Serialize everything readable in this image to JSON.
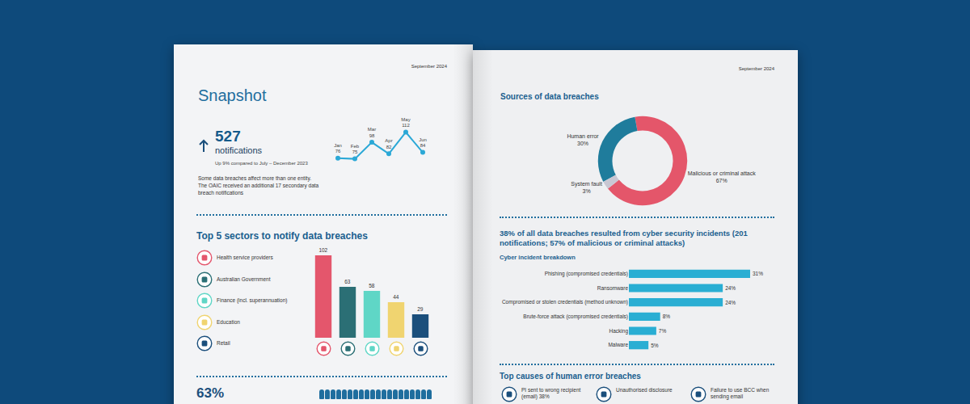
{
  "left_page": {
    "date": "September 2024",
    "title": "Snapshot",
    "headline": {
      "value": 527,
      "label": "notifications",
      "note": "Up 9% compared to July – December 2023",
      "text": "Some data breaches affect more than one entity. The OAIC received an additional 17 secondary data breach notifications"
    },
    "footer_value": "63%"
  },
  "right_page": {
    "date": "September 2024",
    "human_error_title": "Top causes of human error breaches",
    "human_error_causes": [
      {
        "label": "PI sent to wrong recipient (email)",
        "value_label": "38%"
      },
      {
        "label": "Unauthorised disclosure"
      },
      {
        "label": "Failure to use BCC when sending email"
      }
    ]
  },
  "chart_data": [
    {
      "type": "line",
      "categories": [
        "Jan",
        "Feb",
        "Mar",
        "Apr",
        "May",
        "Jun"
      ],
      "values": [
        76,
        75,
        98,
        82,
        112,
        84
      ],
      "color": "#2ba8d6",
      "marker": "circle",
      "data_labels": true,
      "tick_labels": false,
      "ylim": [
        60,
        125
      ]
    },
    {
      "type": "bar",
      "title": "Top 5 sectors to notify data breaches",
      "categories": [
        "Health service providers",
        "Australian Government",
        "Finance (incl. superannuation)",
        "Education",
        "Retail"
      ],
      "values": [
        102,
        63,
        58,
        44,
        29
      ],
      "colors": [
        "#e4566c",
        "#2b6f75",
        "#5fd6c6",
        "#f0d470",
        "#1b4f7c"
      ],
      "data_labels": true,
      "tick_labels": false,
      "ylim": [
        0,
        102
      ]
    },
    {
      "type": "pie",
      "title": "Sources of data breaches",
      "categories": [
        "Malicious or criminal attack",
        "Human error",
        "System fault"
      ],
      "values": [
        67,
        30,
        3
      ],
      "value_labels": [
        "67%",
        "30%",
        "3%"
      ],
      "colors": [
        "#e4566a",
        "#1f7c9c",
        "#c9c7d3"
      ],
      "data_labels": true
    },
    {
      "type": "bar",
      "orientation": "horizontal",
      "title": "38% of all data breaches resulted from cyber security incidents (201 notifications; 57% of malicious or criminal attacks)",
      "subtitle": "Cyber incident breakdown",
      "categories": [
        "Phishing (compromised credentials)",
        "Ransomware",
        "Compromised or stolen credentials (method unknown)",
        "Brute-force attack (compromised credentials)",
        "Hacking",
        "Malware"
      ],
      "values": [
        31,
        24,
        24,
        8,
        7,
        5
      ],
      "value_labels": [
        "31%",
        "24%",
        "24%",
        "8%",
        "7%",
        "5%"
      ],
      "color": "#2aaed3",
      "data_labels": true,
      "tick_labels": "y",
      "xlim": [
        0,
        31
      ]
    }
  ]
}
